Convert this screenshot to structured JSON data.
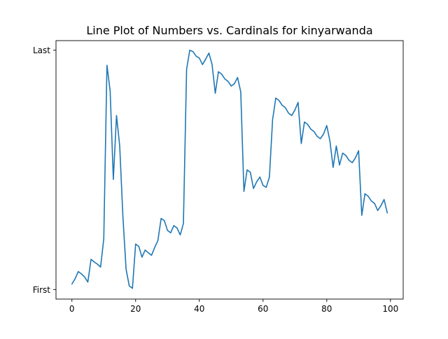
{
  "chart_data": {
    "type": "line",
    "title": "Line Plot of Numbers vs. Cardinals for kinyarwanda",
    "xlabel": "",
    "ylabel": "",
    "xlim": [
      -5,
      104
    ],
    "ylim": [
      -0.04,
      1.04
    ],
    "grid": false,
    "xticks": [
      0,
      20,
      40,
      60,
      80,
      100
    ],
    "yticks": [
      {
        "value": 0,
        "label": "First"
      },
      {
        "value": 1,
        "label": "Last"
      }
    ],
    "line_color": "#1f77b4",
    "x": [
      0,
      1,
      2,
      3,
      4,
      5,
      6,
      7,
      8,
      9,
      10,
      11,
      12,
      13,
      14,
      15,
      16,
      17,
      18,
      19,
      20,
      21,
      22,
      23,
      24,
      25,
      26,
      27,
      28,
      29,
      30,
      31,
      32,
      33,
      34,
      35,
      36,
      37,
      38,
      39,
      40,
      41,
      42,
      43,
      44,
      45,
      46,
      47,
      48,
      49,
      50,
      51,
      52,
      53,
      54,
      55,
      56,
      57,
      58,
      59,
      60,
      61,
      62,
      63,
      64,
      65,
      66,
      67,
      68,
      69,
      70,
      71,
      72,
      73,
      74,
      75,
      76,
      77,
      78,
      79,
      80,
      81,
      82,
      83,
      84,
      85,
      86,
      87,
      88,
      89,
      90,
      91,
      92,
      93,
      94,
      95,
      96,
      97,
      98,
      99
    ],
    "y": [
      0.023,
      0.045,
      0.075,
      0.065,
      0.052,
      0.031,
      0.126,
      0.115,
      0.106,
      0.094,
      0.212,
      0.937,
      0.83,
      0.46,
      0.727,
      0.6,
      0.306,
      0.085,
      0.015,
      0.005,
      0.19,
      0.18,
      0.135,
      0.165,
      0.153,
      0.143,
      0.176,
      0.205,
      0.297,
      0.288,
      0.247,
      0.237,
      0.267,
      0.257,
      0.228,
      0.276,
      0.92,
      1.0,
      0.994,
      0.975,
      0.967,
      0.94,
      0.963,
      0.988,
      0.94,
      0.82,
      0.91,
      0.9,
      0.88,
      0.87,
      0.85,
      0.86,
      0.886,
      0.826,
      0.41,
      0.5,
      0.49,
      0.422,
      0.45,
      0.47,
      0.435,
      0.427,
      0.47,
      0.71,
      0.8,
      0.79,
      0.77,
      0.76,
      0.737,
      0.727,
      0.75,
      0.782,
      0.61,
      0.7,
      0.69,
      0.67,
      0.66,
      0.64,
      0.63,
      0.65,
      0.685,
      0.62,
      0.51,
      0.6,
      0.52,
      0.57,
      0.56,
      0.54,
      0.53,
      0.55,
      0.58,
      0.31,
      0.4,
      0.39,
      0.37,
      0.36,
      0.33,
      0.35,
      0.376,
      0.32
    ]
  }
}
